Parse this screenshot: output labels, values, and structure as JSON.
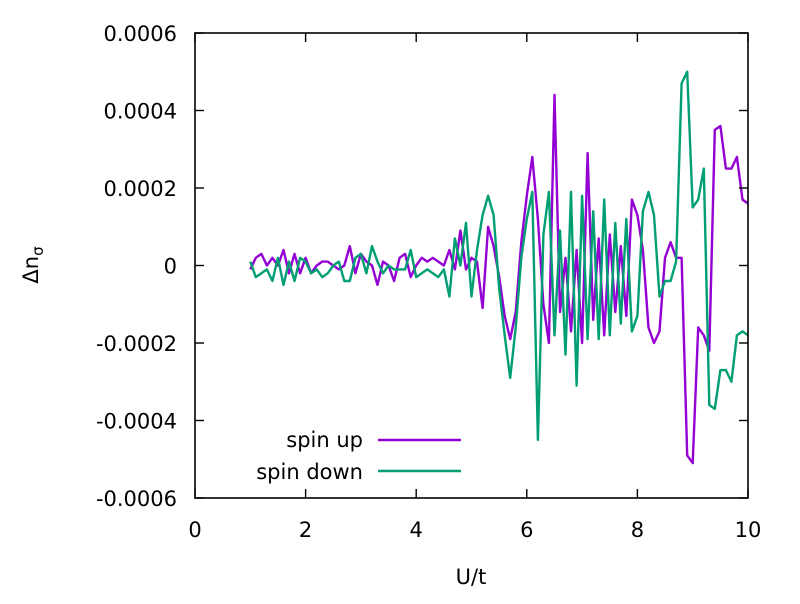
{
  "chart_data": {
    "type": "line",
    "xlabel": "U/t",
    "ylabel": "Δn",
    "ylabel_subscript": "σ",
    "xlim": [
      0,
      10
    ],
    "ylim": [
      -0.0006,
      0.0006
    ],
    "x_ticks": [
      0,
      2,
      4,
      6,
      8,
      10
    ],
    "x_tick_labels": [
      "0",
      "2",
      "4",
      "6",
      "8",
      "10"
    ],
    "y_ticks": [
      -0.0006,
      -0.0004,
      -0.0002,
      0,
      0.0002,
      0.0004,
      0.0006
    ],
    "y_tick_labels": [
      "-0.0006",
      "-0.0004",
      "-0.0002",
      "0",
      "0.0002",
      "0.0004",
      "0.0006"
    ],
    "grid": false,
    "legend_position": "bottom-left",
    "x": [
      1.0,
      1.1,
      1.2,
      1.3,
      1.4,
      1.5,
      1.6,
      1.7,
      1.8,
      1.9,
      2.0,
      2.1,
      2.2,
      2.3,
      2.4,
      2.5,
      2.6,
      2.7,
      2.8,
      2.9,
      3.0,
      3.1,
      3.2,
      3.3,
      3.4,
      3.5,
      3.6,
      3.7,
      3.8,
      3.9,
      4.0,
      4.1,
      4.2,
      4.3,
      4.4,
      4.5,
      4.6,
      4.7,
      4.8,
      4.9,
      5.0,
      5.1,
      5.2,
      5.3,
      5.4,
      5.5,
      5.6,
      5.7,
      5.8,
      5.9,
      6.0,
      6.1,
      6.2,
      6.3,
      6.4,
      6.5,
      6.6,
      6.7,
      6.8,
      6.9,
      7.0,
      7.1,
      7.2,
      7.3,
      7.4,
      7.5,
      7.6,
      7.7,
      7.8,
      7.9,
      8.0,
      8.1,
      8.2,
      8.3,
      8.4,
      8.5,
      8.6,
      8.7,
      8.8,
      8.9,
      9.0,
      9.1,
      9.2,
      9.3,
      9.4,
      9.5,
      9.6,
      9.7,
      9.8,
      9.9,
      10.0
    ],
    "series": [
      {
        "name": "spin up",
        "color": "#9400d3",
        "values": [
          -1e-05,
          2e-05,
          3e-05,
          0.0,
          2e-05,
          0.0,
          4e-05,
          -2e-05,
          3e-05,
          -2e-05,
          2e-05,
          -2e-05,
          0.0,
          1e-05,
          1e-05,
          0.0,
          -1e-05,
          0.0,
          5e-05,
          -2e-05,
          3e-05,
          1e-05,
          0.0,
          -5e-05,
          1e-05,
          0.0,
          -4e-05,
          2e-05,
          3e-05,
          -3e-05,
          0.0,
          2e-05,
          1e-05,
          2e-05,
          1e-05,
          0.0,
          4e-05,
          -1e-05,
          9e-05,
          -1e-05,
          2e-05,
          1e-05,
          -0.00011,
          0.0001,
          5e-05,
          -3e-05,
          -0.00013,
          -0.00019,
          -0.00012,
          6e-05,
          0.00018,
          0.00028,
          0.00012,
          -0.0001,
          -0.0002,
          0.00044,
          -0.00012,
          2e-05,
          -0.00017,
          4e-05,
          -0.0002,
          0.00029,
          -0.00014,
          7e-05,
          -0.00018,
          8e-05,
          -0.00012,
          5e-05,
          -0.00013,
          0.00017,
          0.00013,
          4e-05,
          -0.00016,
          -0.0002,
          -0.00017,
          2e-05,
          6e-05,
          2e-05,
          2e-05,
          -0.00049,
          -0.00051,
          -0.00016,
          -0.00018,
          -0.00022,
          0.00035,
          0.00036,
          0.00025,
          0.00025,
          0.00028,
          0.00017,
          0.00016
        ]
      },
      {
        "name": "spin down",
        "color": "#009e73",
        "values": [
          1e-05,
          -3e-05,
          -2e-05,
          -1e-05,
          -4e-05,
          2e-05,
          -5e-05,
          1e-05,
          -4e-05,
          2e-05,
          1e-05,
          -2e-05,
          -1e-05,
          -3e-05,
          -2e-05,
          0.0,
          1e-05,
          -4e-05,
          -4e-05,
          2e-05,
          3e-05,
          -2e-05,
          5e-05,
          1e-05,
          -2e-05,
          0.0,
          -1e-05,
          -1e-05,
          -1e-05,
          4e-05,
          -3e-05,
          -2e-05,
          -1e-05,
          -2e-05,
          -3e-05,
          -1e-05,
          -8e-05,
          7e-05,
          0.0,
          0.00011,
          -8e-05,
          4e-05,
          0.00013,
          0.00018,
          0.00013,
          -6e-05,
          -0.00018,
          -0.00029,
          -0.00016,
          2e-05,
          0.00012,
          0.00019,
          -0.00045,
          8e-05,
          0.00019,
          -0.00018,
          9e-05,
          -0.00023,
          0.00019,
          -0.00031,
          0.00018,
          -0.00019,
          0.00014,
          -0.00019,
          0.00017,
          -0.00018,
          0.00011,
          -0.00015,
          0.00012,
          -0.00017,
          -0.00013,
          0.00014,
          0.00019,
          0.00013,
          -8e-05,
          -4e-05,
          -4e-05,
          1e-05,
          0.00047,
          0.0005,
          0.00015,
          0.00017,
          0.00025,
          -0.00036,
          -0.00037,
          -0.00027,
          -0.00027,
          -0.0003,
          -0.00018,
          -0.00017,
          -0.00018
        ]
      }
    ]
  }
}
